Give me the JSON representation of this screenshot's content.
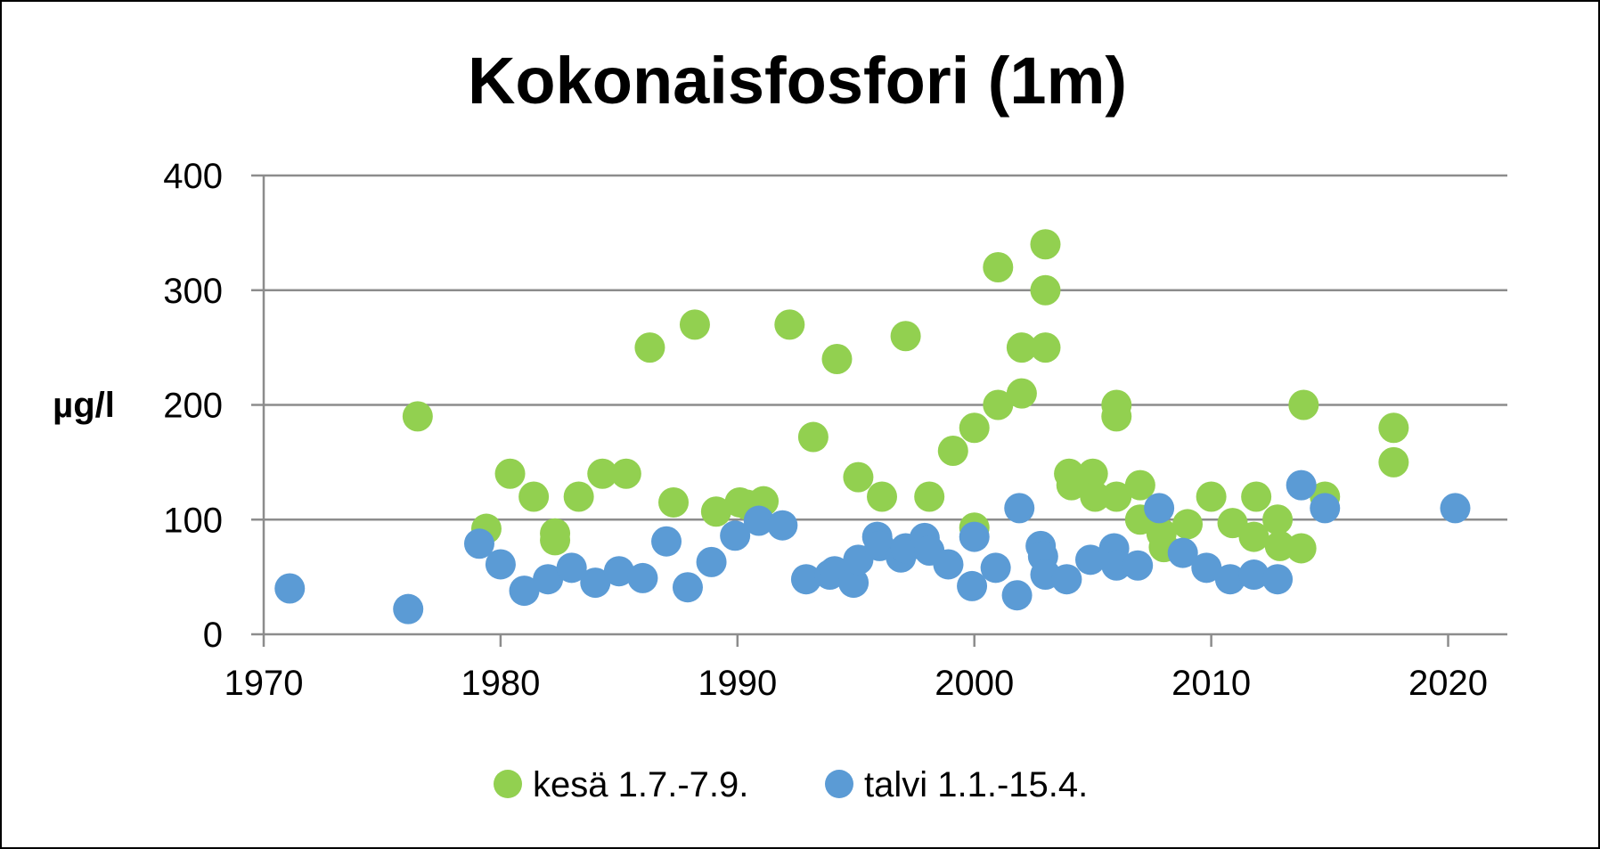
{
  "chart_data": {
    "type": "scatter",
    "title": "Kokonaisfosfori (1m)",
    "xlabel": "",
    "ylabel": "µg/l",
    "xlim": [
      1970,
      2022.5
    ],
    "ylim": [
      0,
      400
    ],
    "x_ticks": [
      1970,
      1980,
      1990,
      2000,
      2010,
      2020
    ],
    "y_ticks": [
      0,
      100,
      200,
      300,
      400
    ],
    "grid": "horizontal",
    "legend_position": "bottom",
    "series": [
      {
        "name": "kesä 1.7.-7.9.",
        "color": "#92d050",
        "points": [
          [
            1976.5,
            190
          ],
          [
            1979.4,
            92
          ],
          [
            1980.4,
            140
          ],
          [
            1981.4,
            120
          ],
          [
            1982.3,
            88
          ],
          [
            1982.3,
            82
          ],
          [
            1983.3,
            120
          ],
          [
            1984.3,
            140
          ],
          [
            1985.3,
            140
          ],
          [
            1986.3,
            250
          ],
          [
            1987.3,
            115
          ],
          [
            1988.2,
            270
          ],
          [
            1989.1,
            107
          ],
          [
            1990.1,
            115
          ],
          [
            1990.4,
            113
          ],
          [
            1991.1,
            116
          ],
          [
            1992.2,
            270
          ],
          [
            1993.2,
            172
          ],
          [
            1994.2,
            240
          ],
          [
            1995.1,
            137
          ],
          [
            1996.1,
            120
          ],
          [
            1997.1,
            260
          ],
          [
            1998.1,
            120
          ],
          [
            1999.1,
            160
          ],
          [
            2000.0,
            180
          ],
          [
            2000.0,
            93
          ],
          [
            2001.0,
            320
          ],
          [
            2001.0,
            200
          ],
          [
            2002.0,
            250
          ],
          [
            2002.0,
            210
          ],
          [
            2003.0,
            340
          ],
          [
            2003.0,
            300
          ],
          [
            2003.0,
            250
          ],
          [
            2004.0,
            140
          ],
          [
            2004.1,
            130
          ],
          [
            2005.0,
            140
          ],
          [
            2005.1,
            120
          ],
          [
            2006.0,
            200
          ],
          [
            2006.0,
            190
          ],
          [
            2006.0,
            120
          ],
          [
            2007.0,
            130
          ],
          [
            2007.0,
            100
          ],
          [
            2007.9,
            88
          ],
          [
            2008.0,
            76
          ],
          [
            2009.0,
            96
          ],
          [
            2010.0,
            120
          ],
          [
            2010.9,
            97
          ],
          [
            2011.8,
            85
          ],
          [
            2011.9,
            120
          ],
          [
            2012.8,
            100
          ],
          [
            2012.9,
            77
          ],
          [
            2013.8,
            75
          ],
          [
            2013.9,
            200
          ],
          [
            2014.8,
            120
          ],
          [
            2017.7,
            180
          ],
          [
            2017.7,
            150
          ]
        ]
      },
      {
        "name": "talvi 1.1.-15.4.",
        "color": "#5b9bd5",
        "points": [
          [
            1971.1,
            40
          ],
          [
            1976.1,
            22
          ],
          [
            1979.1,
            79
          ],
          [
            1980.0,
            61
          ],
          [
            1981.0,
            38
          ],
          [
            1982.0,
            48
          ],
          [
            1983.0,
            58
          ],
          [
            1984.0,
            45
          ],
          [
            1985.0,
            55
          ],
          [
            1986.0,
            49
          ],
          [
            1987.0,
            81
          ],
          [
            1987.9,
            41
          ],
          [
            1988.9,
            63
          ],
          [
            1989.9,
            86
          ],
          [
            1990.9,
            99
          ],
          [
            1991.9,
            95
          ],
          [
            1992.9,
            48
          ],
          [
            1993.9,
            52
          ],
          [
            1994.1,
            55
          ],
          [
            1994.9,
            45
          ],
          [
            1995.1,
            65
          ],
          [
            1995.9,
            85
          ],
          [
            1996.0,
            77
          ],
          [
            1996.9,
            67
          ],
          [
            1997.1,
            75
          ],
          [
            1997.9,
            84
          ],
          [
            1998.1,
            73
          ],
          [
            1998.9,
            61
          ],
          [
            1999.9,
            42
          ],
          [
            2000.0,
            85
          ],
          [
            2000.9,
            58
          ],
          [
            2001.8,
            34
          ],
          [
            2001.9,
            110
          ],
          [
            2002.8,
            77
          ],
          [
            2002.9,
            68
          ],
          [
            2003.0,
            52
          ],
          [
            2003.9,
            48
          ],
          [
            2004.9,
            65
          ],
          [
            2005.9,
            75
          ],
          [
            2006.0,
            60
          ],
          [
            2006.9,
            60
          ],
          [
            2007.8,
            110
          ],
          [
            2008.8,
            71
          ],
          [
            2009.8,
            58
          ],
          [
            2010.8,
            48
          ],
          [
            2011.8,
            52
          ],
          [
            2012.8,
            48
          ],
          [
            2013.8,
            130
          ],
          [
            2014.8,
            110
          ],
          [
            2020.3,
            110
          ]
        ]
      }
    ]
  }
}
